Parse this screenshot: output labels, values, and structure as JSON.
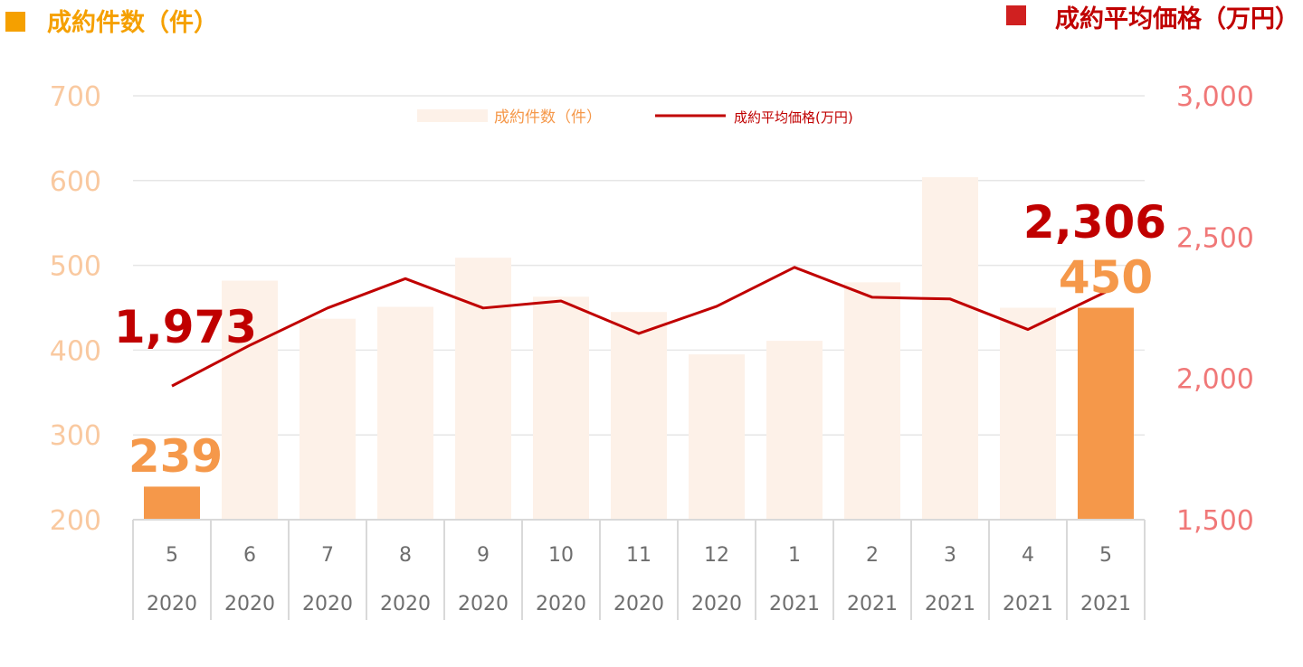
{
  "header": {
    "left_title": "成約件数（件）",
    "right_title": "成約平均価格（万円）"
  },
  "legend": {
    "bar_label": "成約件数（件）",
    "line_label": "成約平均価格(万円)"
  },
  "callouts": {
    "first_price": "1,973",
    "last_price": "2,306",
    "first_count": "239",
    "last_count": "450"
  },
  "colors": {
    "bar_faded": "#fdf1e8",
    "bar_highlight": "#f5984a",
    "line": "#c00000",
    "left_axis": "#f9c9a0",
    "right_axis": "#f07878",
    "callout_count": "#f5984a",
    "callout_price": "#c00000",
    "header_left_marker": "#f5a000",
    "header_right_marker": "#d02020",
    "header_left_text": "#f5a000",
    "header_right_text": "#c00000",
    "grid": "#e6e6e6",
    "category_text": "#6e6e6e"
  },
  "chart_data": {
    "type": "bar",
    "categories": [
      {
        "month": "5",
        "year": "2020"
      },
      {
        "month": "6",
        "year": "2020"
      },
      {
        "month": "7",
        "year": "2020"
      },
      {
        "month": "8",
        "year": "2020"
      },
      {
        "month": "9",
        "year": "2020"
      },
      {
        "month": "10",
        "year": "2020"
      },
      {
        "month": "11",
        "year": "2020"
      },
      {
        "month": "12",
        "year": "2020"
      },
      {
        "month": "1",
        "year": "2021"
      },
      {
        "month": "2",
        "year": "2021"
      },
      {
        "month": "3",
        "year": "2021"
      },
      {
        "month": "4",
        "year": "2021"
      },
      {
        "month": "5",
        "year": "2021"
      }
    ],
    "series": [
      {
        "name": "成約件数（件）",
        "type": "bar",
        "axis": "left",
        "values": [
          239,
          482,
          437,
          451,
          509,
          463,
          445,
          395,
          411,
          480,
          604,
          450,
          450
        ]
      },
      {
        "name": "成約平均価格(万円)",
        "type": "line",
        "axis": "right",
        "values": [
          1973,
          2117,
          2249,
          2353,
          2249,
          2274,
          2159,
          2255,
          2393,
          2287,
          2281,
          2173,
          2306
        ]
      }
    ],
    "highlighted_bars": [
      0,
      12
    ],
    "left_axis": {
      "ticks": [
        "200",
        "300",
        "400",
        "500",
        "600",
        "700"
      ],
      "ylim": [
        200,
        700
      ]
    },
    "right_axis": {
      "ticks": [
        "1,500",
        "2,000",
        "2,500",
        "3,000"
      ],
      "ylim": [
        1500,
        3000
      ]
    },
    "grid": true,
    "legend_position": "top-center"
  }
}
